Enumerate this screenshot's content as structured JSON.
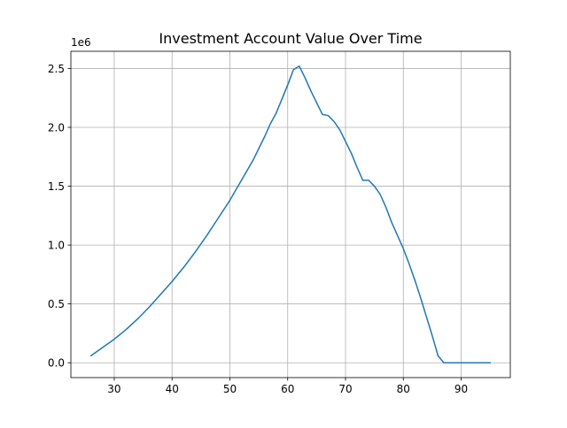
{
  "chart_data": {
    "type": "line",
    "title": "Investment Account Value Over Time",
    "xlabel": "",
    "ylabel": "",
    "y_offset_label": "1e6",
    "xlim": [
      22.5,
      98.5
    ],
    "ylim": [
      -0.126,
      2.646
    ],
    "x_ticks": [
      30,
      40,
      50,
      60,
      70,
      80,
      90
    ],
    "x_tick_labels": [
      "30",
      "40",
      "50",
      "60",
      "70",
      "80",
      "90"
    ],
    "y_ticks": [
      0.0,
      0.5,
      1.0,
      1.5,
      2.0,
      2.5
    ],
    "y_tick_labels": [
      "0.0",
      "0.5",
      "1.0",
      "1.5",
      "2.0",
      "2.5"
    ],
    "grid": true,
    "legend": "none",
    "series": [
      {
        "color": "#1f77b4",
        "x": [
          26,
          28,
          30,
          32,
          34,
          36,
          38,
          40,
          42,
          44,
          46,
          48,
          50,
          52,
          54,
          56,
          57,
          58,
          59,
          60,
          61,
          62,
          63,
          64,
          65,
          66,
          67,
          68,
          69,
          70,
          71,
          72,
          73,
          74,
          75,
          76,
          77,
          78,
          79,
          80,
          81,
          82,
          83,
          84,
          85,
          86,
          87,
          88,
          89,
          90,
          91,
          92,
          93,
          94,
          95
        ],
        "y": [
          0.06,
          0.13,
          0.2,
          0.28,
          0.37,
          0.47,
          0.58,
          0.69,
          0.81,
          0.94,
          1.08,
          1.23,
          1.38,
          1.55,
          1.72,
          1.92,
          2.03,
          2.12,
          2.24,
          2.36,
          2.49,
          2.52,
          2.42,
          2.31,
          2.21,
          2.11,
          2.1,
          2.05,
          1.98,
          1.88,
          1.78,
          1.66,
          1.55,
          1.55,
          1.5,
          1.43,
          1.32,
          1.19,
          1.08,
          0.97,
          0.84,
          0.7,
          0.55,
          0.39,
          0.23,
          0.06,
          0.0,
          0.0,
          0.0,
          0.0,
          0.0,
          0.0,
          0.0,
          0.0,
          0.0
        ]
      }
    ]
  }
}
